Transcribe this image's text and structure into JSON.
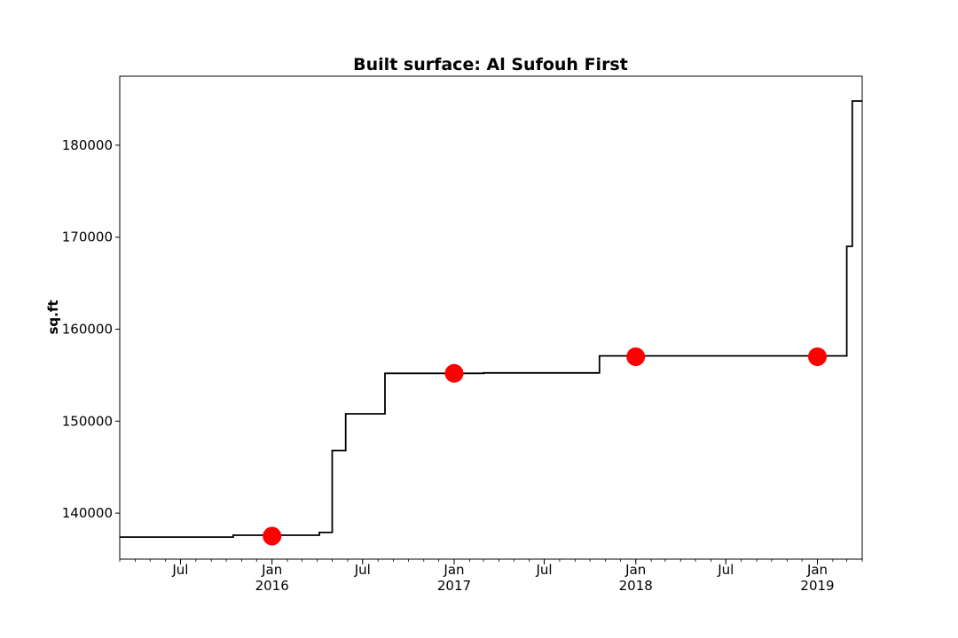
{
  "chart_data": {
    "type": "line",
    "title": "Built surface: Al Sufouh First",
    "xlabel": "",
    "ylabel": "sq.ft",
    "xlim": [
      "2015-03-01",
      "2019-04-01"
    ],
    "ylim": [
      135000,
      187500
    ],
    "grid": false,
    "y_ticks": [
      140000,
      150000,
      160000,
      170000,
      180000
    ],
    "x_major_ticks": [
      {
        "date": "2015-07-01",
        "label": "Jul",
        "sublabel": ""
      },
      {
        "date": "2016-01-01",
        "label": "Jan",
        "sublabel": "2016"
      },
      {
        "date": "2016-07-01",
        "label": "Jul",
        "sublabel": ""
      },
      {
        "date": "2017-01-01",
        "label": "Jan",
        "sublabel": "2017"
      },
      {
        "date": "2017-07-01",
        "label": "Jul",
        "sublabel": ""
      },
      {
        "date": "2018-01-01",
        "label": "Jan",
        "sublabel": "2018"
      },
      {
        "date": "2018-07-01",
        "label": "Jul",
        "sublabel": ""
      },
      {
        "date": "2019-01-01",
        "label": "Jan",
        "sublabel": "2019"
      }
    ],
    "series": [
      {
        "style": "step",
        "color": "#000000",
        "points": [
          {
            "x": "2015-03-01",
            "y": 137400
          },
          {
            "x": "2015-10-15",
            "y": 137600
          },
          {
            "x": "2016-04-05",
            "y": 137900
          },
          {
            "x": "2016-05-01",
            "y": 146800
          },
          {
            "x": "2016-05-28",
            "y": 150800
          },
          {
            "x": "2016-08-15",
            "y": 155200
          },
          {
            "x": "2017-03-01",
            "y": 155250
          },
          {
            "x": "2017-10-20",
            "y": 157100
          },
          {
            "x": "2019-03-01",
            "y": 169000
          },
          {
            "x": "2019-03-12",
            "y": 184800
          },
          {
            "x": "2019-04-01",
            "y": 184800
          }
        ]
      },
      {
        "style": "markers",
        "color": "#ff0000",
        "points": [
          {
            "x": "2016-01-01",
            "y": 137500
          },
          {
            "x": "2017-01-01",
            "y": 155200
          },
          {
            "x": "2018-01-01",
            "y": 157000
          },
          {
            "x": "2019-01-01",
            "y": 157000
          }
        ]
      }
    ]
  }
}
